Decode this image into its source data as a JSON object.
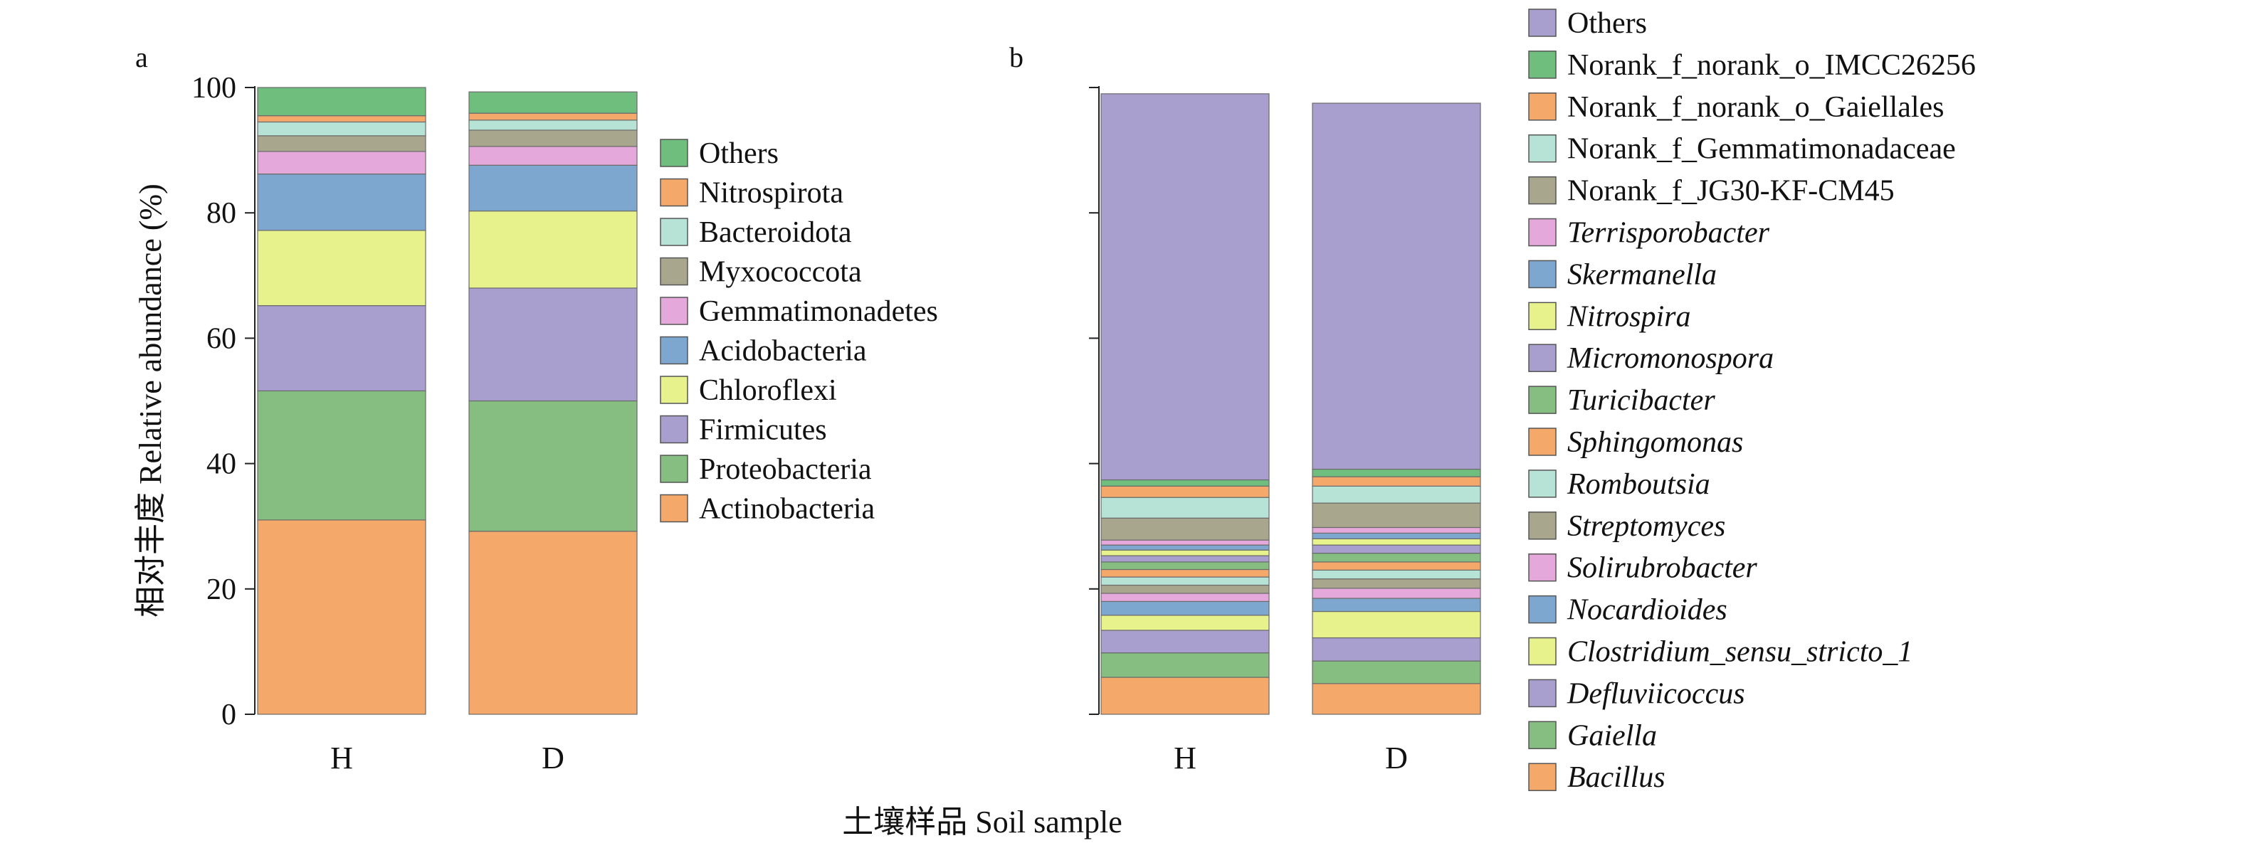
{
  "figure": {
    "ylabel": "相对丰度 Relative abundance (%)",
    "xlabel": "土壤样品 Soil sample"
  },
  "chart_data": [
    {
      "panel": "a",
      "type": "bar",
      "stacked": true,
      "categories": [
        "H",
        "D"
      ],
      "ylim": [
        0,
        100
      ],
      "yticks": [
        0,
        20,
        40,
        60,
        80,
        100
      ],
      "legend_position": "right",
      "series": [
        {
          "name": "Actinobacteria",
          "color": "#F4A96B",
          "values": [
            31.0,
            29.2
          ]
        },
        {
          "name": "Proteobacteria",
          "color": "#85BE80",
          "values": [
            20.6,
            20.8
          ]
        },
        {
          "name": "Firmicutes",
          "color": "#A89FCF",
          "values": [
            13.6,
            18.0
          ]
        },
        {
          "name": "Chloroflexi",
          "color": "#E8F28D",
          "values": [
            12.0,
            12.3
          ]
        },
        {
          "name": "Acidobacteria",
          "color": "#7EA7CF",
          "values": [
            9.0,
            7.3
          ]
        },
        {
          "name": "Gemmatimonadetes",
          "color": "#E5A8DA",
          "values": [
            3.6,
            3.0
          ]
        },
        {
          "name": "Myxococcota",
          "color": "#A9A68E",
          "values": [
            2.5,
            2.6
          ]
        },
        {
          "name": "Bacteroidota",
          "color": "#B7E3D6",
          "values": [
            2.2,
            1.6
          ]
        },
        {
          "name": "Nitrospirota",
          "color": "#F4A96B",
          "values": [
            1.0,
            1.1
          ]
        },
        {
          "name": "Others",
          "color": "#6FBE7E",
          "values": [
            4.5,
            3.4
          ]
        }
      ]
    },
    {
      "panel": "b",
      "type": "bar",
      "stacked": true,
      "categories": [
        "H",
        "D"
      ],
      "ylim": [
        0,
        100
      ],
      "yticks": [
        0,
        20,
        40,
        60,
        80,
        100
      ],
      "legend_position": "right",
      "series": [
        {
          "name": "Bacillus",
          "italic": true,
          "color": "#F4A96B",
          "values": [
            5.9,
            4.9
          ]
        },
        {
          "name": "Gaiella",
          "italic": true,
          "color": "#85BE80",
          "values": [
            3.9,
            3.6
          ]
        },
        {
          "name": "Defluviicoccus",
          "italic": true,
          "color": "#A89FCF",
          "values": [
            3.6,
            3.7
          ]
        },
        {
          "name": "Clostridium_sensu_stricto_1",
          "italic": true,
          "color": "#E8F28D",
          "values": [
            2.4,
            4.2
          ]
        },
        {
          "name": "Nocardioides",
          "italic": true,
          "color": "#7EA7CF",
          "values": [
            2.2,
            2.1
          ]
        },
        {
          "name": "Solirubrobacter",
          "italic": true,
          "color": "#E5A8DA",
          "values": [
            1.3,
            1.6
          ]
        },
        {
          "name": "Streptomyces",
          "italic": true,
          "color": "#A9A68E",
          "values": [
            1.3,
            1.5
          ]
        },
        {
          "name": "Romboutsia",
          "italic": true,
          "color": "#B7E3D6",
          "values": [
            1.3,
            1.4
          ]
        },
        {
          "name": "Sphingomonas",
          "italic": true,
          "color": "#F4A96B",
          "values": [
            1.2,
            1.3
          ]
        },
        {
          "name": "Turicibacter",
          "italic": true,
          "color": "#85BE80",
          "values": [
            1.2,
            1.4
          ]
        },
        {
          "name": "Micromonospora",
          "italic": true,
          "color": "#A89FCF",
          "values": [
            1.0,
            1.3
          ]
        },
        {
          "name": "Nitrospira",
          "italic": true,
          "color": "#E8F28D",
          "values": [
            0.9,
            1.0
          ]
        },
        {
          "name": "Skermanella",
          "italic": true,
          "color": "#7EA7CF",
          "values": [
            0.8,
            0.9
          ]
        },
        {
          "name": "Terrisporobacter",
          "italic": true,
          "color": "#E5A8DA",
          "values": [
            0.8,
            0.9
          ]
        },
        {
          "name": "Norank_f_JG30-KF-CM45",
          "italic": false,
          "color": "#A9A68E",
          "values": [
            3.5,
            3.9
          ]
        },
        {
          "name": "Norank_f_Gemmatimonadaceae",
          "italic": false,
          "color": "#B7E3D6",
          "values": [
            3.3,
            2.7
          ]
        },
        {
          "name": "Norank_f_norank_o_Gaiellales",
          "italic": false,
          "color": "#F4A96B",
          "values": [
            1.8,
            1.5
          ]
        },
        {
          "name": "Norank_f_norank_o_IMCC26256",
          "italic": false,
          "color": "#6FBE7E",
          "values": [
            1.0,
            1.2
          ]
        },
        {
          "name": "Others",
          "italic": false,
          "color": "#A89FCF",
          "values": [
            61.6,
            58.4
          ]
        }
      ]
    }
  ]
}
